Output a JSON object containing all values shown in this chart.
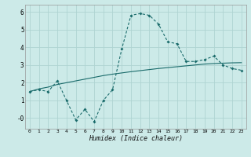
{
  "xlabel": "Humidex (Indice chaleur)",
  "bg_color": "#cceae8",
  "grid_color": "#afd4d2",
  "line_color": "#1a6b6b",
  "x_line1": [
    0,
    1,
    2,
    3,
    4,
    5,
    6,
    7,
    8,
    9,
    10,
    11,
    12,
    13,
    14,
    15,
    16,
    17,
    18,
    19,
    20,
    21,
    22,
    23
  ],
  "y_line1": [
    1.5,
    1.6,
    1.5,
    2.1,
    1.0,
    -0.1,
    0.5,
    -0.2,
    1.0,
    1.6,
    3.9,
    5.8,
    5.9,
    5.8,
    5.3,
    4.3,
    4.2,
    3.2,
    3.2,
    3.3,
    3.5,
    3.0,
    2.8,
    2.7
  ],
  "x_line2": [
    0,
    1,
    2,
    3,
    4,
    5,
    6,
    7,
    8,
    9,
    10,
    11,
    12,
    13,
    14,
    15,
    16,
    17,
    18,
    19,
    20,
    21,
    22,
    23
  ],
  "y_line2": [
    1.5,
    1.65,
    1.75,
    1.9,
    2.0,
    2.1,
    2.2,
    2.3,
    2.4,
    2.48,
    2.55,
    2.62,
    2.68,
    2.74,
    2.8,
    2.85,
    2.9,
    2.95,
    3.0,
    3.05,
    3.08,
    3.1,
    3.12,
    3.13
  ],
  "xlim": [
    -0.5,
    23.5
  ],
  "ylim": [
    -0.6,
    6.4
  ],
  "yticks": [
    0,
    1,
    2,
    3,
    4,
    5,
    6
  ],
  "ytick_labels": [
    "-0",
    "1",
    "2",
    "3",
    "4",
    "5",
    "6"
  ],
  "xticks": [
    0,
    1,
    2,
    3,
    4,
    5,
    6,
    7,
    8,
    9,
    10,
    11,
    12,
    13,
    14,
    15,
    16,
    17,
    18,
    19,
    20,
    21,
    22,
    23
  ]
}
